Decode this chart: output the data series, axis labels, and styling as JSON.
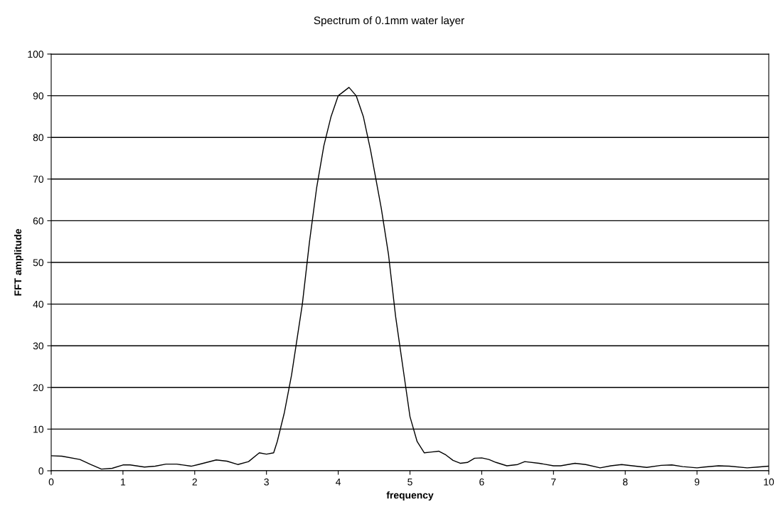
{
  "chart_data": {
    "type": "line",
    "title": "Spectrum of 0.1mm water layer",
    "xlabel": "frequency",
    "ylabel": "FFT amplitude",
    "series": [
      {
        "color": "#000000",
        "x": [
          0,
          0.15,
          0.4,
          0.55,
          0.7,
          0.85,
          1.0,
          1.1,
          1.3,
          1.45,
          1.6,
          1.75,
          1.95,
          2.05,
          2.3,
          2.45,
          2.6,
          2.75,
          2.9,
          3.0,
          3.1,
          3.15,
          3.25,
          3.35,
          3.5,
          3.6,
          3.7,
          3.8,
          3.9,
          4.0,
          4.15,
          4.25,
          4.35,
          4.45,
          4.6,
          4.7,
          4.8,
          4.9,
          5.0,
          5.1,
          5.2,
          5.3,
          5.4,
          5.5,
          5.6,
          5.7,
          5.8,
          5.9,
          6.0,
          6.1,
          6.2,
          6.35,
          6.5,
          6.6,
          6.8,
          7.0,
          7.1,
          7.3,
          7.45,
          7.65,
          7.8,
          7.95,
          8.1,
          8.3,
          8.5,
          8.65,
          8.8,
          9.0,
          9.1,
          9.3,
          9.45,
          9.7,
          9.85,
          10
        ],
        "values": [
          3.6,
          3.5,
          2.7,
          1.5,
          0.4,
          0.6,
          1.4,
          1.4,
          0.9,
          1.1,
          1.6,
          1.6,
          1.1,
          1.5,
          2.6,
          2.3,
          1.5,
          2.2,
          4.3,
          4.0,
          4.3,
          7,
          14,
          23,
          40,
          55,
          68,
          78,
          85,
          90,
          92,
          90,
          85,
          77,
          63,
          52,
          37,
          25,
          13,
          7,
          4.3,
          4.5,
          4.7,
          3.8,
          2.5,
          1.8,
          2.0,
          3.0,
          3.1,
          2.7,
          2.0,
          1.2,
          1.5,
          2.2,
          1.8,
          1.2,
          1.2,
          1.8,
          1.5,
          0.7,
          1.2,
          1.5,
          1.2,
          0.8,
          1.3,
          1.4,
          1.0,
          0.7,
          0.9,
          1.2,
          1.1,
          0.7,
          0.9,
          1.1
        ]
      }
    ],
    "xlim": [
      0,
      10
    ],
    "ylim": [
      0,
      100
    ],
    "xticks": [
      0,
      1,
      2,
      3,
      4,
      5,
      6,
      7,
      8,
      9,
      10
    ],
    "yticks": [
      0,
      10,
      20,
      30,
      40,
      50,
      60,
      70,
      80,
      90,
      100
    ],
    "grid": "y",
    "marker": "none",
    "line_style": "solid",
    "legend": false
  }
}
